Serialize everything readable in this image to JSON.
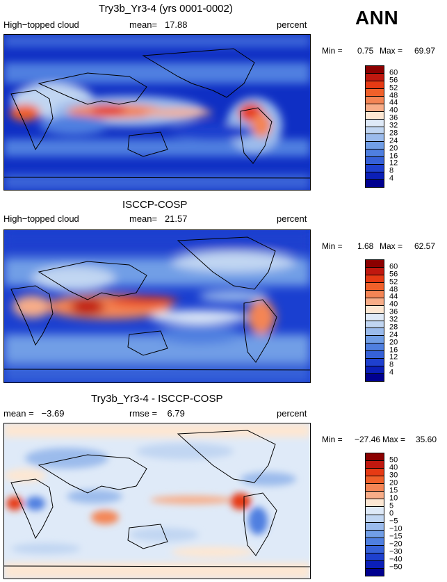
{
  "season": "ANN",
  "colors": {
    "abs_scale": [
      "#8b0000",
      "#c0180f",
      "#e63a14",
      "#f0602a",
      "#f48555",
      "#f8ad88",
      "#fde7d3",
      "#dfeaf8",
      "#c1d6f2",
      "#9bbbec",
      "#719ee6",
      "#4f7fe0",
      "#3661d8",
      "#1e40cf",
      "#0b1fb8",
      "#00008f"
    ],
    "diff_scale": [
      "#8b0000",
      "#c0180f",
      "#e63a14",
      "#f0602a",
      "#f48555",
      "#f8ad88",
      "#fde7d3",
      "#dfeaf8",
      "#c1d6f2",
      "#9bbbec",
      "#719ee6",
      "#4f7fe0",
      "#3661d8",
      "#1e40cf",
      "#0b1fb8",
      "#00008f"
    ]
  },
  "panels": [
    {
      "title": "Try3b_Yr3-4 (yrs 0001-0002)",
      "left_label": "High−topped cloud",
      "center_label": "mean=   17.88",
      "right_label": "percent",
      "min_label": "Min =",
      "min_value": "0.75",
      "max_label": "Max =",
      "max_value": "69.97",
      "colorbar_labels": [
        "60",
        "56",
        "52",
        "48",
        "44",
        "40",
        "36",
        "32",
        "28",
        "24",
        "20",
        "16",
        "12",
        "8",
        "4"
      ]
    },
    {
      "title": "ISCCP-COSP",
      "left_label": "High−topped cloud",
      "center_label": "mean=   21.57",
      "right_label": "percent",
      "min_label": "Min =",
      "min_value": "1.68",
      "max_label": "Max =",
      "max_value": "62.57",
      "colorbar_labels": [
        "60",
        "56",
        "52",
        "48",
        "44",
        "40",
        "36",
        "32",
        "28",
        "24",
        "20",
        "16",
        "12",
        "8",
        "4"
      ]
    },
    {
      "title": "Try3b_Yr3-4 - ISCCP-COSP",
      "left_label": "mean =   −3.69",
      "center_label": "rmse =    6.79",
      "right_label": "percent",
      "min_label": "Min =",
      "min_value": "−27.46",
      "max_label": "Max =",
      "max_value": "35.60",
      "colorbar_labels": [
        "50",
        "40",
        "30",
        "20",
        "15",
        "10",
        "5",
        "0",
        "−5",
        "−10",
        "−15",
        "−20",
        "−30",
        "−40",
        "−50"
      ]
    }
  ]
}
